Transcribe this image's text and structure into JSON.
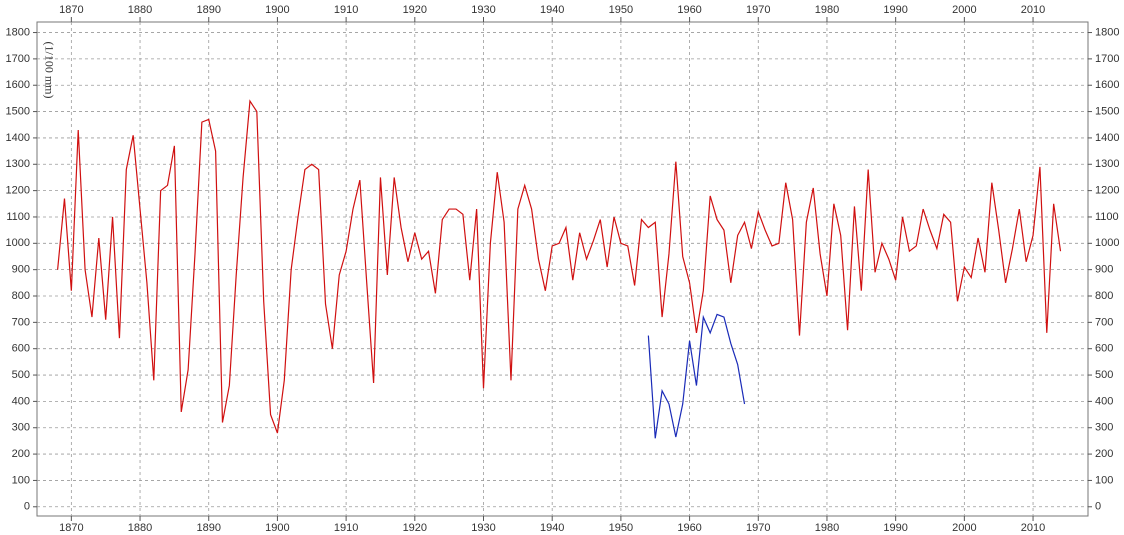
{
  "chart_data": {
    "type": "line",
    "y_label": "(1/100 mm)",
    "xlim": [
      1865,
      2018
    ],
    "ylim": [
      -35,
      1840
    ],
    "xticks": [
      1870,
      1880,
      1890,
      1900,
      1910,
      1920,
      1930,
      1940,
      1950,
      1960,
      1970,
      1980,
      1990,
      2000,
      2010
    ],
    "yticks": [
      0,
      100,
      200,
      300,
      400,
      500,
      600,
      700,
      800,
      900,
      1000,
      1100,
      1200,
      1300,
      1400,
      1500,
      1600,
      1700,
      1800
    ],
    "grid": true,
    "series": [
      {
        "color": "#d01010",
        "x": [
          1868,
          1869,
          1870,
          1871,
          1872,
          1873,
          1874,
          1875,
          1876,
          1877,
          1878,
          1879,
          1880,
          1881,
          1882,
          1883,
          1884,
          1885,
          1886,
          1887,
          1888,
          1889,
          1890,
          1891,
          1892,
          1893,
          1894,
          1895,
          1896,
          1897,
          1898,
          1899,
          1900,
          1901,
          1902,
          1903,
          1904,
          1905,
          1906,
          1907,
          1908,
          1909,
          1910,
          1911,
          1912,
          1913,
          1914,
          1915,
          1916,
          1917,
          1918,
          1919,
          1920,
          1921,
          1922,
          1923,
          1924,
          1925,
          1926,
          1927,
          1928,
          1929,
          1930,
          1931,
          1932,
          1933,
          1934,
          1935,
          1936,
          1937,
          1938,
          1939,
          1940,
          1941,
          1942,
          1943,
          1944,
          1945,
          1946,
          1947,
          1948,
          1949,
          1950,
          1951,
          1952,
          1953,
          1954,
          1955,
          1956,
          1957,
          1958,
          1959,
          1960,
          1961,
          1962,
          1963,
          1964,
          1965,
          1966,
          1967,
          1968,
          1969,
          1970,
          1971,
          1972,
          1973,
          1974,
          1975,
          1976,
          1977,
          1978,
          1979,
          1980,
          1981,
          1982,
          1983,
          1984,
          1985,
          1986,
          1987,
          1988,
          1989,
          1990,
          1991,
          1992,
          1993,
          1994,
          1995,
          1996,
          1997,
          1998,
          1999,
          2000,
          2001,
          2002,
          2003,
          2004,
          2005,
          2006,
          2007,
          2008,
          2009,
          2010,
          2011,
          2012,
          2013,
          2014
        ],
        "values": [
          900,
          1170,
          820,
          1430,
          900,
          720,
          1020,
          710,
          1100,
          640,
          1280,
          1410,
          1130,
          850,
          480,
          1200,
          1220,
          1370,
          360,
          520,
          960,
          1460,
          1470,
          1350,
          320,
          460,
          880,
          1250,
          1540,
          1500,
          780,
          350,
          280,
          480,
          900,
          1100,
          1280,
          1300,
          1280,
          770,
          600,
          880,
          970,
          1130,
          1240,
          850,
          470,
          1250,
          880,
          1250,
          1060,
          930,
          1040,
          940,
          970,
          810,
          1090,
          1130,
          1130,
          1110,
          860,
          1130,
          450,
          1000,
          1270,
          1080,
          480,
          1130,
          1220,
          1130,
          940,
          820,
          990,
          1000,
          1060,
          860,
          1040,
          940,
          1010,
          1090,
          910,
          1100,
          1000,
          990,
          840,
          1090,
          1060,
          1080,
          720,
          960,
          1310,
          950,
          850,
          660,
          820,
          1180,
          1090,
          1050,
          850,
          1030,
          1080,
          980,
          1120,
          1050,
          990,
          1000,
          1230,
          1090,
          650,
          1080,
          1210,
          960,
          800,
          1150,
          1030,
          670,
          1140,
          820,
          1280,
          890,
          1000,
          940,
          860,
          1100,
          970,
          990,
          1130,
          1050,
          980,
          1110,
          1080,
          780,
          910,
          870,
          1020,
          890,
          1230,
          1050,
          850,
          980,
          1130,
          930,
          1030,
          1290,
          660,
          1150,
          970
        ]
      },
      {
        "color": "#1a2bb8",
        "x": [
          1954,
          1955,
          1956,
          1957,
          1958,
          1959,
          1960,
          1961,
          1962,
          1963,
          1964,
          1965,
          1966,
          1967,
          1968
        ],
        "values": [
          650,
          260,
          440,
          390,
          265,
          390,
          630,
          460,
          720,
          660,
          730,
          720,
          620,
          540,
          390
        ]
      }
    ]
  }
}
